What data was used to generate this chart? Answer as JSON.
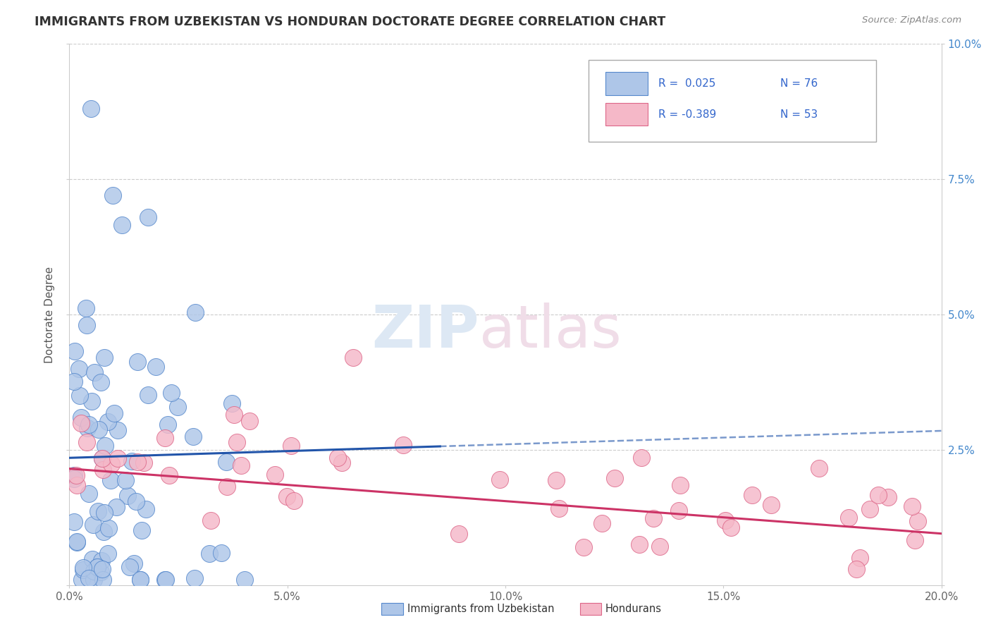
{
  "title": "IMMIGRANTS FROM UZBEKISTAN VS HONDURAN DOCTORATE DEGREE CORRELATION CHART",
  "source": "Source: ZipAtlas.com",
  "ylabel": "Doctorate Degree",
  "ytick_vals": [
    0.0,
    0.025,
    0.05,
    0.075,
    0.1
  ],
  "ytick_labels": [
    "",
    "2.5%",
    "5.0%",
    "7.5%",
    "10.0%"
  ],
  "xtick_vals": [
    0.0,
    0.05,
    0.1,
    0.15,
    0.2
  ],
  "xtick_labels": [
    "0.0%",
    "5.0%",
    "10.0%",
    "15.0%",
    "20.0%"
  ],
  "ylim": [
    0.0,
    0.1
  ],
  "xlim": [
    0.0,
    0.2
  ],
  "series1_color": "#aec6e8",
  "series2_color": "#f5b8c8",
  "series1_edge": "#5588cc",
  "series2_edge": "#dd6688",
  "trend1_color": "#2255aa",
  "trend2_color": "#cc3366",
  "trend1_solid_end": 0.085,
  "trend1_y_start": 0.0235,
  "trend1_y_end": 0.0285,
  "trend2_y_start": 0.0215,
  "trend2_y_end": 0.0095,
  "background_color": "#ffffff",
  "grid_color": "#cccccc",
  "title_color": "#333333",
  "source_color": "#888888",
  "watermark_zip_color": "#e0e8f0",
  "watermark_atlas_color": "#e8e0e8",
  "tick_color": "#4488cc",
  "axis_color": "#cccccc",
  "legend_r1": "R =  0.025",
  "legend_n1": "N = 76",
  "legend_r2": "R = -0.389",
  "legend_n2": "N = 53",
  "legend_text_color": "#3366cc"
}
